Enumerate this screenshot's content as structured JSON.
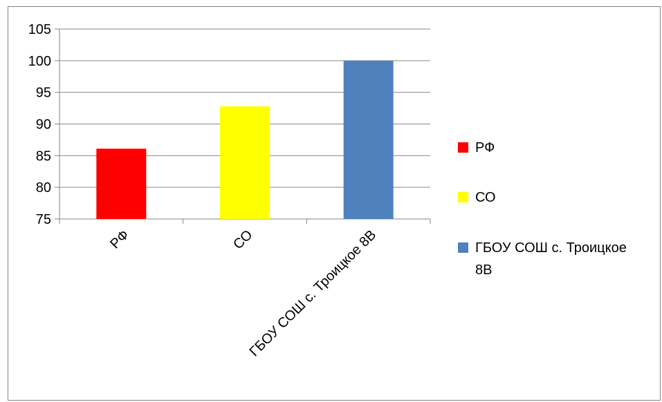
{
  "chart_data": {
    "type": "bar",
    "categories": [
      "РФ",
      "СО",
      "ГБОУ СОШ с. Троицкое 8В"
    ],
    "values": [
      86.1,
      92.8,
      100
    ],
    "colors": [
      "#ff0000",
      "#ffff00",
      "#4f81bd"
    ],
    "title": "",
    "xlabel": "",
    "ylabel": "",
    "ylim": [
      75,
      105
    ],
    "yticks": [
      75,
      80,
      85,
      90,
      95,
      100,
      105
    ],
    "grid": true,
    "legend_position": "right",
    "legend": [
      {
        "label": "РФ",
        "color": "#ff0000"
      },
      {
        "label": "СО",
        "color": "#ffff00"
      },
      {
        "label": "ГБОУ СОШ с. Троицкое 8В",
        "label_lines": [
          "ГБОУ СОШ с. Троицкое",
          "8В"
        ],
        "color": "#4f81bd"
      }
    ]
  }
}
